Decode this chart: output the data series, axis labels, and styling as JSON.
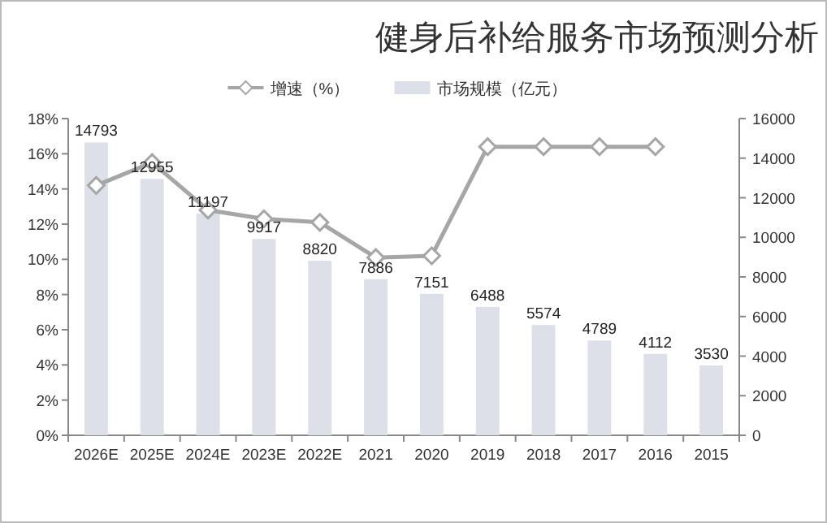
{
  "chart_data": {
    "type": "bar",
    "title": "健身后补给服务市场预测分析",
    "categories": [
      "2026E",
      "2025E",
      "2024E",
      "2023E",
      "2022E",
      "2021",
      "2020",
      "2019",
      "2018",
      "2017",
      "2016",
      "2015"
    ],
    "series": [
      {
        "name": "增速（%）",
        "type": "line",
        "color": "#a6a6a6",
        "marker": "diamond",
        "values": [
          14.2,
          15.5,
          12.8,
          12.3,
          12.1,
          10.1,
          10.2,
          16.4,
          16.4,
          16.4,
          16.4,
          null
        ]
      },
      {
        "name": "市场规模（亿元）",
        "axis": "y2",
        "color": "#dde0e8",
        "values": [
          14793,
          12955,
          11197,
          9917,
          8820,
          7886,
          7151,
          6488,
          5574,
          4789,
          4112,
          3530
        ],
        "value_labels": [
          "14793",
          "12955",
          "11197",
          "9917",
          "8820",
          "7886",
          "7151",
          "6488",
          "5574",
          "4789",
          "4112",
          "3530"
        ]
      }
    ],
    "ylim": [
      0,
      18
    ],
    "yticks": [
      {
        "value": 0,
        "label": "0%"
      },
      {
        "value": 2,
        "label": "2%"
      },
      {
        "value": 4,
        "label": "4%"
      },
      {
        "value": 6,
        "label": "6%"
      },
      {
        "value": 8,
        "label": "8%"
      },
      {
        "value": 10,
        "label": "10%"
      },
      {
        "value": 12,
        "label": "12%"
      },
      {
        "value": 14,
        "label": "14%"
      },
      {
        "value": 16,
        "label": "16%"
      },
      {
        "value": 18,
        "label": "18%"
      }
    ],
    "y2lim": [
      0,
      16000
    ],
    "y2ticks": [
      0,
      2000,
      4000,
      6000,
      8000,
      10000,
      12000,
      14000,
      16000
    ],
    "legend": "top"
  }
}
